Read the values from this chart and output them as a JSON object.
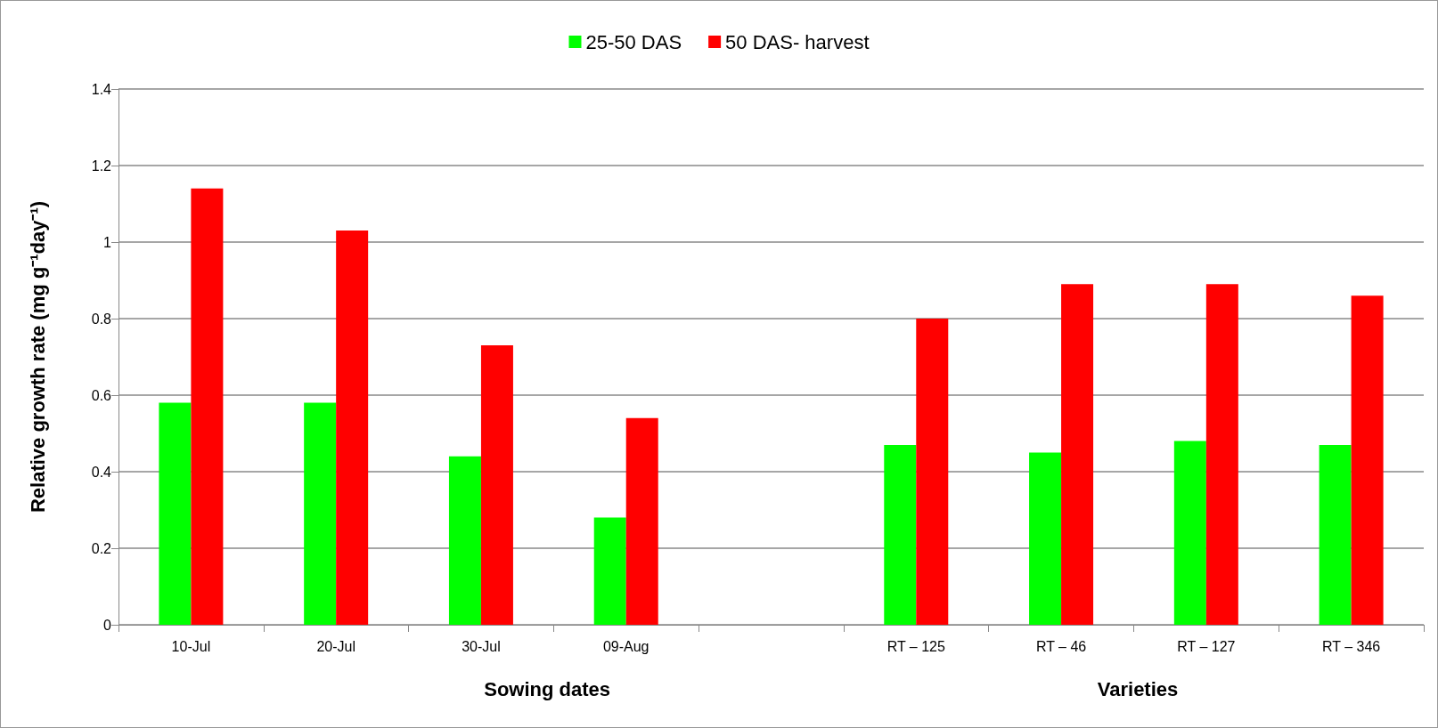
{
  "chart_data": {
    "type": "bar",
    "ylabel": "Relative growth rate (mg g⁻¹day⁻¹)",
    "categories": [
      "10-Jul",
      "20-Jul",
      "30-Jul",
      "09-Aug",
      null,
      "RT – 125",
      "RT – 46",
      "RT – 127",
      "RT – 346"
    ],
    "series": [
      {
        "name": "25-50 DAS",
        "color": "#00ff00",
        "values": [
          0.58,
          0.58,
          0.44,
          0.28,
          null,
          0.47,
          0.45,
          0.48,
          0.47
        ]
      },
      {
        "name": "50 DAS- harvest",
        "color": "#ff0000",
        "values": [
          1.14,
          1.03,
          0.73,
          0.54,
          null,
          0.8,
          0.89,
          0.89,
          0.86
        ]
      }
    ],
    "ylim": [
      0,
      1.4
    ],
    "yticks": [
      0,
      0.2,
      0.4,
      0.6,
      0.8,
      1,
      1.2,
      1.4
    ],
    "grid": "y",
    "legend": "top",
    "annotations": [
      "Sowing dates",
      "Varieties"
    ]
  }
}
